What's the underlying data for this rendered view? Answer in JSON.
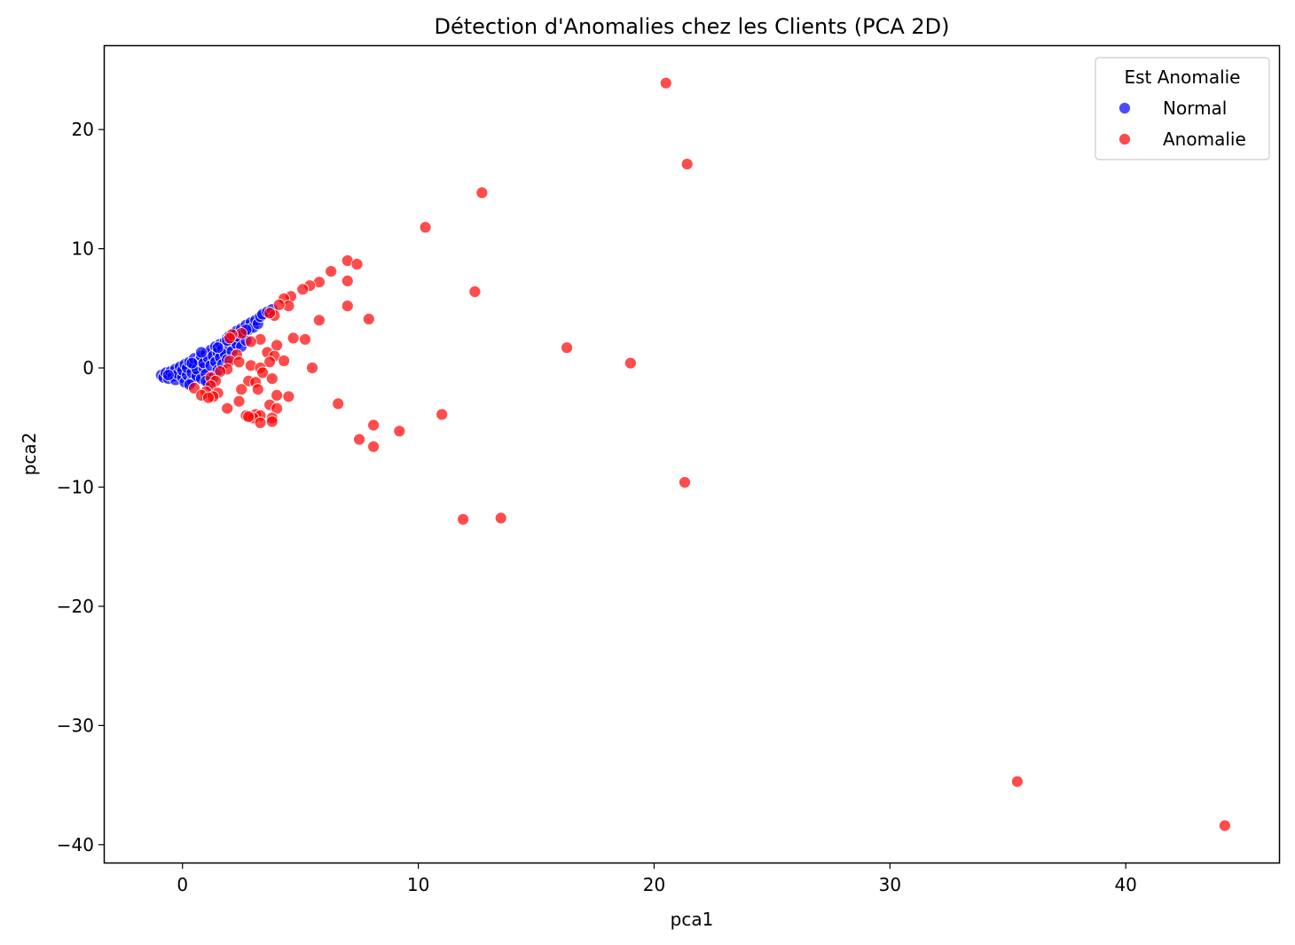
{
  "chart_data": {
    "type": "scatter",
    "title": "Détection d'Anomalies chez les Clients (PCA 2D)",
    "xlabel": "pca1",
    "ylabel": "pca2",
    "xlim": [
      -3.3,
      46.5
    ],
    "ylim": [
      -41.5,
      27.0
    ],
    "xticks": [
      0,
      10,
      20,
      30,
      40
    ],
    "yticks": [
      -40,
      -30,
      -20,
      -10,
      0,
      10,
      20
    ],
    "grid": false,
    "legend": {
      "title": "Est Anomalie",
      "position": "top-right",
      "entries": [
        "Normal",
        "Anomalie"
      ]
    },
    "colors": {
      "Normal": "#0000ff",
      "Anomalie": "#ff0000"
    },
    "series": [
      {
        "name": "Normal",
        "color": "#0000ff",
        "points": [
          [
            -0.9,
            -0.6
          ],
          [
            -0.8,
            -0.8
          ],
          [
            -0.7,
            -0.4
          ],
          [
            -0.6,
            -0.9
          ],
          [
            -0.5,
            -0.3
          ],
          [
            -0.4,
            -0.7
          ],
          [
            -0.3,
            -0.1
          ],
          [
            -0.3,
            -1.0
          ],
          [
            -0.2,
            -0.5
          ],
          [
            -0.1,
            0.1
          ],
          [
            0.0,
            -0.8
          ],
          [
            0.0,
            -0.2
          ],
          [
            0.1,
            0.3
          ],
          [
            0.1,
            -1.2
          ],
          [
            0.2,
            -0.6
          ],
          [
            0.2,
            0.0
          ],
          [
            0.3,
            0.5
          ],
          [
            0.4,
            -1.1
          ],
          [
            0.4,
            -0.4
          ],
          [
            0.5,
            0.2
          ],
          [
            0.5,
            0.8
          ],
          [
            0.6,
            -0.7
          ],
          [
            0.6,
            -0.1
          ],
          [
            0.7,
            0.6
          ],
          [
            0.8,
            1.0
          ],
          [
            0.8,
            -0.9
          ],
          [
            0.9,
            0.0
          ],
          [
            0.9,
            0.4
          ],
          [
            1.0,
            1.2
          ],
          [
            1.0,
            -0.5
          ],
          [
            1.1,
            0.8
          ],
          [
            1.1,
            -1.3
          ],
          [
            1.2,
            1.5
          ],
          [
            1.2,
            0.2
          ],
          [
            1.3,
            1.0
          ],
          [
            1.3,
            -0.8
          ],
          [
            1.4,
            0.5
          ],
          [
            1.4,
            1.8
          ],
          [
            1.5,
            1.3
          ],
          [
            1.5,
            -0.2
          ],
          [
            1.6,
            2.0
          ],
          [
            1.6,
            0.9
          ],
          [
            1.7,
            1.6
          ],
          [
            1.7,
            0.3
          ],
          [
            1.8,
            2.2
          ],
          [
            1.8,
            1.2
          ],
          [
            1.9,
            2.5
          ],
          [
            1.9,
            0.7
          ],
          [
            2.0,
            1.9
          ],
          [
            2.0,
            2.7
          ],
          [
            2.1,
            1.4
          ],
          [
            2.1,
            2.3
          ],
          [
            2.2,
            2.9
          ],
          [
            2.3,
            2.0
          ],
          [
            2.3,
            3.1
          ],
          [
            2.4,
            2.6
          ],
          [
            2.5,
            3.3
          ],
          [
            2.5,
            1.8
          ],
          [
            2.6,
            2.9
          ],
          [
            2.7,
            3.6
          ],
          [
            2.7,
            2.3
          ],
          [
            2.8,
            3.2
          ],
          [
            2.9,
            3.8
          ],
          [
            3.0,
            3.4
          ],
          [
            3.1,
            4.0
          ],
          [
            3.2,
            3.7
          ],
          [
            3.3,
            4.3
          ],
          [
            3.4,
            4.5
          ],
          [
            3.6,
            4.7
          ],
          [
            3.8,
            4.9
          ],
          [
            0.4,
            0.4
          ],
          [
            0.8,
            1.3
          ],
          [
            1.5,
            1.7
          ],
          [
            1.9,
            2.3
          ],
          [
            2.7,
            3.2
          ],
          [
            -0.6,
            -0.6
          ],
          [
            0.3,
            -1.4
          ],
          [
            1.0,
            -1.1
          ]
        ]
      },
      {
        "name": "Anomalie",
        "color": "#ff0000",
        "points": [
          [
            20.5,
            23.9
          ],
          [
            21.4,
            17.1
          ],
          [
            12.7,
            14.7
          ],
          [
            10.3,
            11.8
          ],
          [
            7.0,
            9.0
          ],
          [
            7.4,
            8.7
          ],
          [
            6.3,
            8.1
          ],
          [
            7.0,
            7.3
          ],
          [
            5.8,
            7.2
          ],
          [
            5.4,
            6.9
          ],
          [
            5.1,
            6.6
          ],
          [
            12.4,
            6.4
          ],
          [
            4.6,
            6.0
          ],
          [
            4.3,
            5.8
          ],
          [
            7.0,
            5.2
          ],
          [
            4.5,
            5.2
          ],
          [
            4.1,
            5.3
          ],
          [
            3.9,
            4.4
          ],
          [
            7.9,
            4.1
          ],
          [
            5.8,
            4.0
          ],
          [
            3.7,
            4.6
          ],
          [
            4.7,
            2.5
          ],
          [
            5.2,
            2.4
          ],
          [
            3.3,
            2.4
          ],
          [
            2.9,
            2.2
          ],
          [
            2.5,
            2.9
          ],
          [
            2.1,
            2.8
          ],
          [
            2.0,
            2.5
          ],
          [
            4.0,
            1.9
          ],
          [
            16.3,
            1.7
          ],
          [
            3.6,
            1.3
          ],
          [
            3.9,
            1.0
          ],
          [
            2.3,
            1.1
          ],
          [
            2.0,
            0.6
          ],
          [
            2.4,
            0.5
          ],
          [
            4.3,
            0.6
          ],
          [
            3.7,
            0.5
          ],
          [
            19.0,
            0.4
          ],
          [
            2.9,
            0.2
          ],
          [
            3.3,
            0.0
          ],
          [
            5.5,
            0.0
          ],
          [
            1.9,
            -0.1
          ],
          [
            1.6,
            -0.3
          ],
          [
            3.4,
            -0.4
          ],
          [
            1.2,
            -0.8
          ],
          [
            3.8,
            -0.9
          ],
          [
            1.4,
            -1.1
          ],
          [
            2.8,
            -1.1
          ],
          [
            3.1,
            -1.2
          ],
          [
            1.2,
            -1.5
          ],
          [
            2.5,
            -1.8
          ],
          [
            0.5,
            -1.7
          ],
          [
            1.0,
            -2.0
          ],
          [
            0.8,
            -2.3
          ],
          [
            3.2,
            -1.8
          ],
          [
            1.5,
            -2.1
          ],
          [
            1.3,
            -2.4
          ],
          [
            4.0,
            -2.3
          ],
          [
            4.5,
            -2.4
          ],
          [
            1.1,
            -2.5
          ],
          [
            2.4,
            -2.8
          ],
          [
            3.7,
            -3.1
          ],
          [
            6.6,
            -3.0
          ],
          [
            1.9,
            -3.4
          ],
          [
            4.0,
            -3.4
          ],
          [
            3.1,
            -3.9
          ],
          [
            2.7,
            -4.0
          ],
          [
            3.3,
            -4.0
          ],
          [
            3.0,
            -4.2
          ],
          [
            2.8,
            -4.1
          ],
          [
            3.8,
            -4.2
          ],
          [
            11.0,
            -3.9
          ],
          [
            3.3,
            -4.6
          ],
          [
            3.8,
            -4.5
          ],
          [
            8.1,
            -4.8
          ],
          [
            9.2,
            -5.3
          ],
          [
            7.5,
            -6.0
          ],
          [
            8.1,
            -6.6
          ],
          [
            21.3,
            -9.6
          ],
          [
            13.5,
            -12.6
          ],
          [
            11.9,
            -12.7
          ],
          [
            35.4,
            -34.7
          ],
          [
            44.2,
            -38.4
          ]
        ]
      }
    ]
  }
}
